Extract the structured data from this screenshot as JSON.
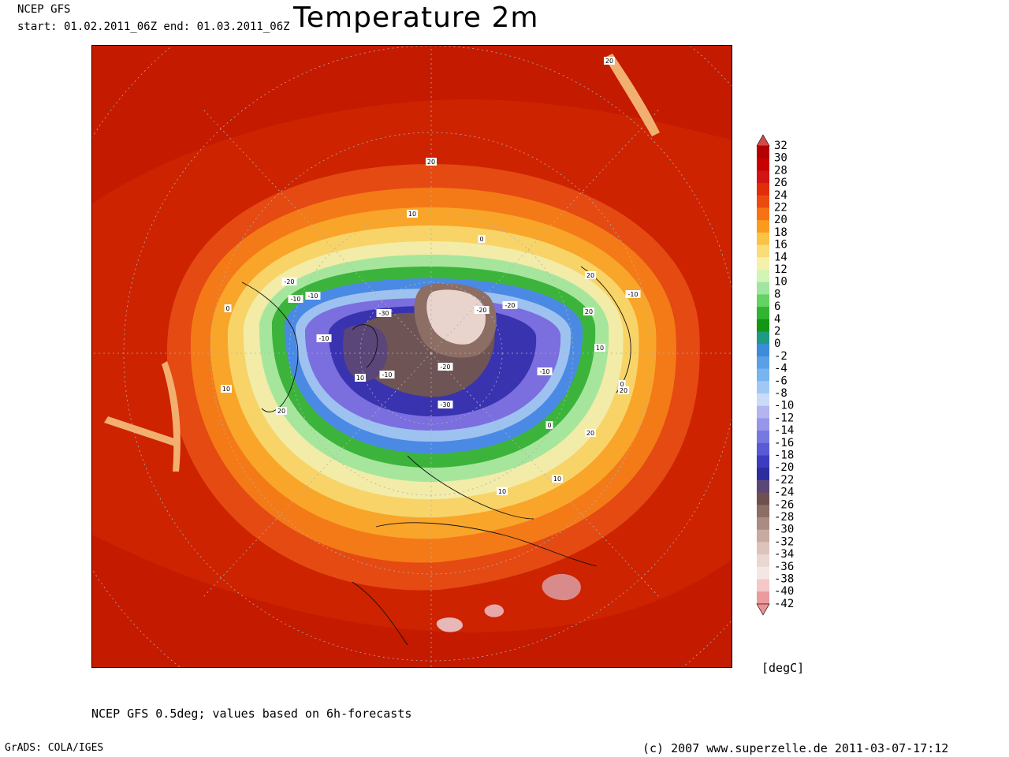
{
  "header": {
    "model": "NCEP GFS",
    "period": "start: 01.02.2011_06Z    end: 01.03.2011_06Z",
    "title": "Temperature 2m"
  },
  "map": {
    "projection": "north-polar-stereographic",
    "contour_labels": [
      "20",
      "10",
      "0",
      "-10",
      "-20",
      "-30",
      "-10",
      "-20",
      "-10",
      "0",
      "10",
      "20",
      "10",
      "-10",
      "-20",
      "-30",
      "-20",
      "-10",
      "0",
      "10",
      "20",
      "20",
      "10",
      "0",
      "-10",
      "20",
      "20",
      "20",
      "10"
    ],
    "colors": {
      "hot": "#d42a00",
      "warm": "#e64c14",
      "orange": "#f58a1e",
      "yellow": "#f7d060",
      "pale_yellow": "#f5eca6",
      "light_green": "#a8e8a0",
      "green": "#3cba3c",
      "blue": "#4a8be6",
      "light_blue": "#9fc3f2",
      "violet": "#7c6fe0",
      "deep_blue": "#3a34b2",
      "brown": "#6e5454",
      "pink": "#d98a8a"
    }
  },
  "colorbar": {
    "unit": "[degC]",
    "levels": [
      "32",
      "30",
      "28",
      "26",
      "24",
      "22",
      "20",
      "18",
      "16",
      "14",
      "12",
      "10",
      "8",
      "6",
      "4",
      "2",
      "0",
      "-2",
      "-4",
      "-6",
      "-8",
      "-10",
      "-12",
      "-14",
      "-16",
      "-18",
      "-20",
      "-22",
      "-24",
      "-26",
      "-28",
      "-30",
      "-32",
      "-34",
      "-36",
      "-38",
      "-40",
      "-42"
    ],
    "band_colors": [
      "#b40000",
      "#c80000",
      "#d21414",
      "#e12d0a",
      "#eb4b0f",
      "#f57314",
      "#fa9b1e",
      "#fac346",
      "#fadc78",
      "#f5f0aa",
      "#d2f5b4",
      "#a0e6a0",
      "#64d264",
      "#32b432",
      "#149614",
      "#1e9b82",
      "#3c8cdc",
      "#5aa0e6",
      "#78b4f0",
      "#a0c8f5",
      "#c8dcfa",
      "#b4b4f0",
      "#9696eb",
      "#7878e1",
      "#5a5ad7",
      "#3c3cc3",
      "#2d2da0",
      "#5a4678",
      "#6e5050",
      "#8c6e64",
      "#aa8c82",
      "#c8aaa0",
      "#dcc3bc",
      "#ebd7d2",
      "#f5e6e6",
      "#f5c8c8",
      "#eb9b9b"
    ],
    "top_arrow_color": "#d24b4b",
    "bottom_arrow_color": "#eb9191"
  },
  "footer": {
    "description": "NCEP GFS 0.5deg; values based on 6h-forecasts",
    "software": "GrADS: COLA/IGES",
    "copyright": "(c) 2007 www.superzelle.de     2011-03-07-17:12"
  }
}
